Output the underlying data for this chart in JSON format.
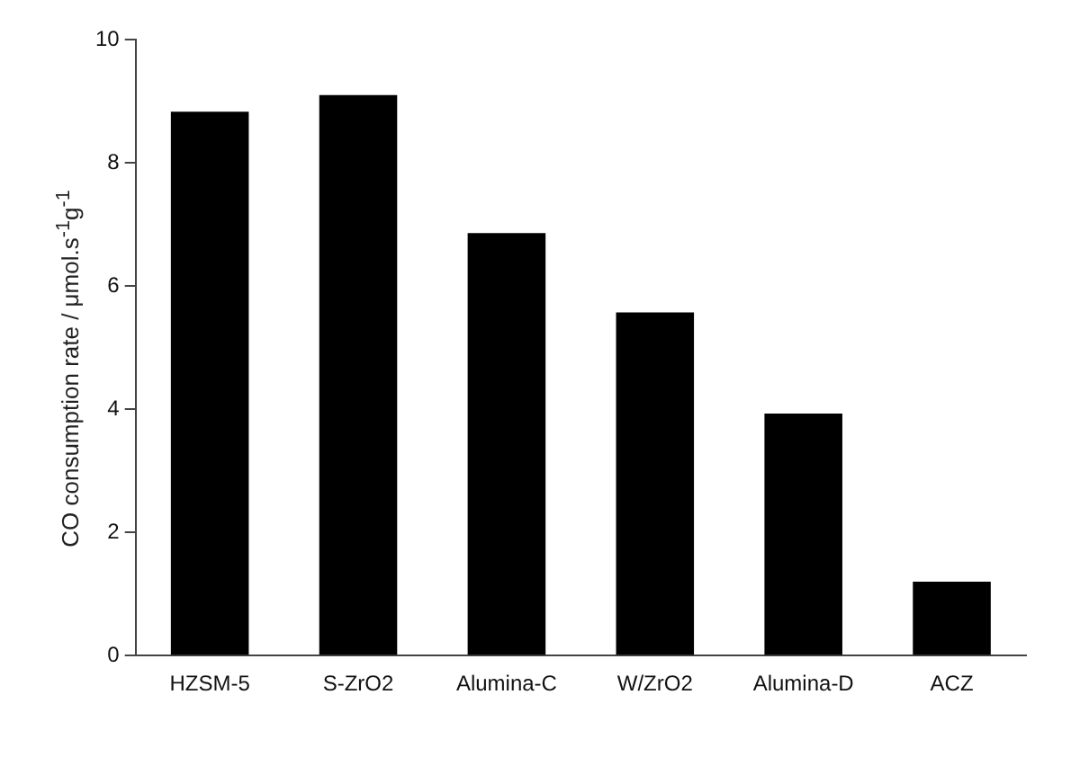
{
  "chart_data": {
    "type": "bar",
    "ylabel": "CO consumption rate / μmol.s$^{-1}$g$^{-1}$",
    "categories": [
      "HZSM-5",
      "S-ZrO2",
      "Alumina-C",
      "W/ZrO2",
      "Alumina-D",
      "ACZ"
    ],
    "values": [
      8.83,
      9.1,
      6.86,
      5.57,
      3.93,
      1.2
    ],
    "color": "#000000",
    "ylim": [
      0,
      10
    ],
    "yticks": [
      0,
      2,
      4,
      6,
      8,
      10
    ],
    "grid": false,
    "legend": false
  }
}
